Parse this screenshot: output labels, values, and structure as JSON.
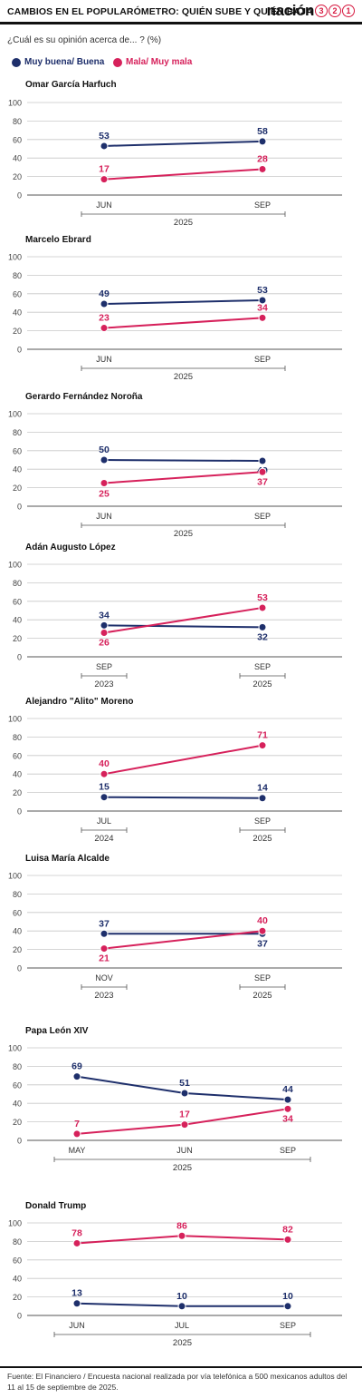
{
  "header": {
    "title": "CAMBIOS EN EL POPULARÓMETRO: QUIÉN SUBE Y QUIÉN BAJA",
    "brand_word": "nación",
    "brand_digits": [
      "3",
      "2",
      "1"
    ]
  },
  "question": "¿Cuál es su opinión acerca de... ? (%)",
  "legend": [
    {
      "label": "Muy buena/ Buena",
      "color": "#1e2f6b"
    },
    {
      "label": "Mala/ Muy mala",
      "color": "#d6215b"
    }
  ],
  "colors": {
    "positive": "#1e2f6b",
    "negative": "#d6215b",
    "grid": "#c8c8c8",
    "axis": "#444444"
  },
  "chart_data": [
    {
      "type": "line",
      "title": "Omar García Harfuch",
      "categories": [
        "JUN",
        "SEP"
      ],
      "period_labels": [
        "2025"
      ],
      "ylim": [
        0,
        100
      ],
      "yticks": [
        0,
        20,
        40,
        60,
        80,
        100
      ],
      "series": [
        {
          "name": "Muy buena/ Buena",
          "values": [
            53,
            58
          ]
        },
        {
          "name": "Mala/ Muy mala",
          "values": [
            17,
            28
          ]
        }
      ]
    },
    {
      "type": "line",
      "title": "Marcelo Ebrard",
      "categories": [
        "JUN",
        "SEP"
      ],
      "period_labels": [
        "2025"
      ],
      "ylim": [
        0,
        100
      ],
      "yticks": [
        0,
        20,
        40,
        60,
        80,
        100
      ],
      "series": [
        {
          "name": "Muy buena/ Buena",
          "values": [
            49,
            53
          ]
        },
        {
          "name": "Mala/ Muy mala",
          "values": [
            23,
            34
          ]
        }
      ]
    },
    {
      "type": "line",
      "title": "Gerardo Fernández Noroña",
      "categories": [
        "JUN",
        "SEP"
      ],
      "period_labels": [
        "2025"
      ],
      "ylim": [
        0,
        100
      ],
      "yticks": [
        0,
        20,
        40,
        60,
        80,
        100
      ],
      "series": [
        {
          "name": "Muy buena/ Buena",
          "values": [
            50,
            49
          ]
        },
        {
          "name": "Mala/ Muy mala",
          "values": [
            25,
            37
          ]
        }
      ]
    },
    {
      "type": "line",
      "title": "Adán Augusto López",
      "categories": [
        "SEP",
        "SEP"
      ],
      "period_labels": [
        "2023",
        "2025"
      ],
      "ylim": [
        0,
        100
      ],
      "yticks": [
        0,
        20,
        40,
        60,
        80,
        100
      ],
      "series": [
        {
          "name": "Muy buena/ Buena",
          "values": [
            34,
            32
          ]
        },
        {
          "name": "Mala/ Muy mala",
          "values": [
            26,
            53
          ]
        }
      ]
    },
    {
      "type": "line",
      "title": "Alejandro \"Alito\" Moreno",
      "categories": [
        "JUL",
        "SEP"
      ],
      "period_labels": [
        "2024",
        "2025"
      ],
      "ylim": [
        0,
        100
      ],
      "yticks": [
        0,
        20,
        40,
        60,
        80,
        100
      ],
      "series": [
        {
          "name": "Muy buena/ Buena",
          "values": [
            15,
            14
          ]
        },
        {
          "name": "Mala/ Muy mala",
          "values": [
            40,
            71
          ]
        }
      ]
    },
    {
      "type": "line",
      "title": "Luisa María Alcalde",
      "categories": [
        "NOV",
        "SEP"
      ],
      "period_labels": [
        "2023",
        "2025"
      ],
      "ylim": [
        0,
        100
      ],
      "yticks": [
        0,
        20,
        40,
        60,
        80,
        100
      ],
      "series": [
        {
          "name": "Muy buena/ Buena",
          "values": [
            37,
            37
          ]
        },
        {
          "name": "Mala/ Muy mala",
          "values": [
            21,
            40
          ]
        }
      ]
    },
    {
      "type": "line",
      "title": "Papa León XIV",
      "categories": [
        "MAY",
        "JUN",
        "SEP"
      ],
      "period_labels": [
        "2025"
      ],
      "ylim": [
        0,
        100
      ],
      "yticks": [
        0,
        20,
        40,
        60,
        80,
        100
      ],
      "series": [
        {
          "name": "Muy buena/ Buena",
          "values": [
            69,
            51,
            44
          ]
        },
        {
          "name": "Mala/ Muy mala",
          "values": [
            7,
            17,
            34
          ]
        }
      ]
    },
    {
      "type": "line",
      "title": "Donald Trump",
      "categories": [
        "JUN",
        "JUL",
        "SEP"
      ],
      "period_labels": [
        "2025"
      ],
      "ylim": [
        0,
        100
      ],
      "yticks": [
        0,
        20,
        40,
        60,
        80,
        100
      ],
      "series": [
        {
          "name": "Muy buena/ Buena",
          "values": [
            13,
            10,
            10
          ]
        },
        {
          "name": "Mala/ Muy mala",
          "values": [
            78,
            86,
            82
          ]
        }
      ]
    }
  ],
  "source": "Fuente: El Financiero / Encuesta nacional realizada por vía telefónica a 500 mexicanos adultos del 11 al 15 de septiembre de 2025."
}
